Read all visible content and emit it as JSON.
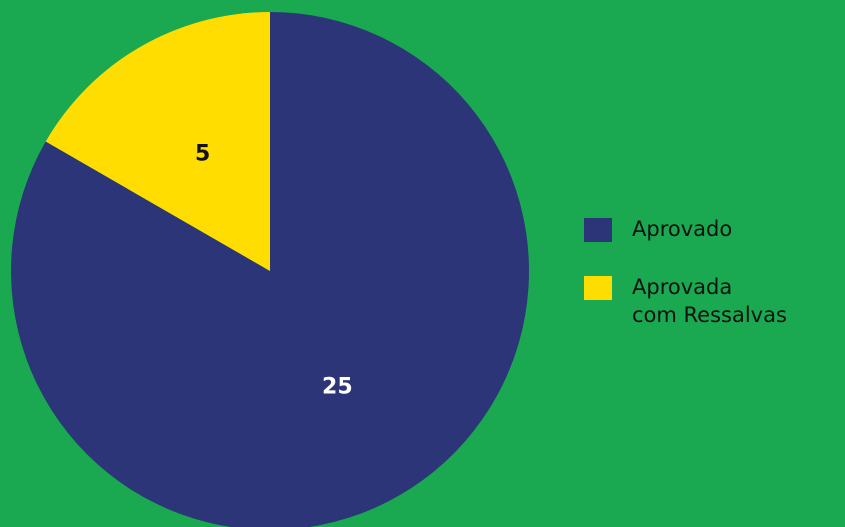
{
  "chart_data": {
    "type": "pie",
    "categories": [
      "Aprovado",
      "Aprovada com Ressalvas"
    ],
    "values": [
      25,
      5
    ],
    "colors": [
      "#2b3577",
      "#ffdd00"
    ],
    "background": "#1aa850",
    "legend": "right"
  }
}
